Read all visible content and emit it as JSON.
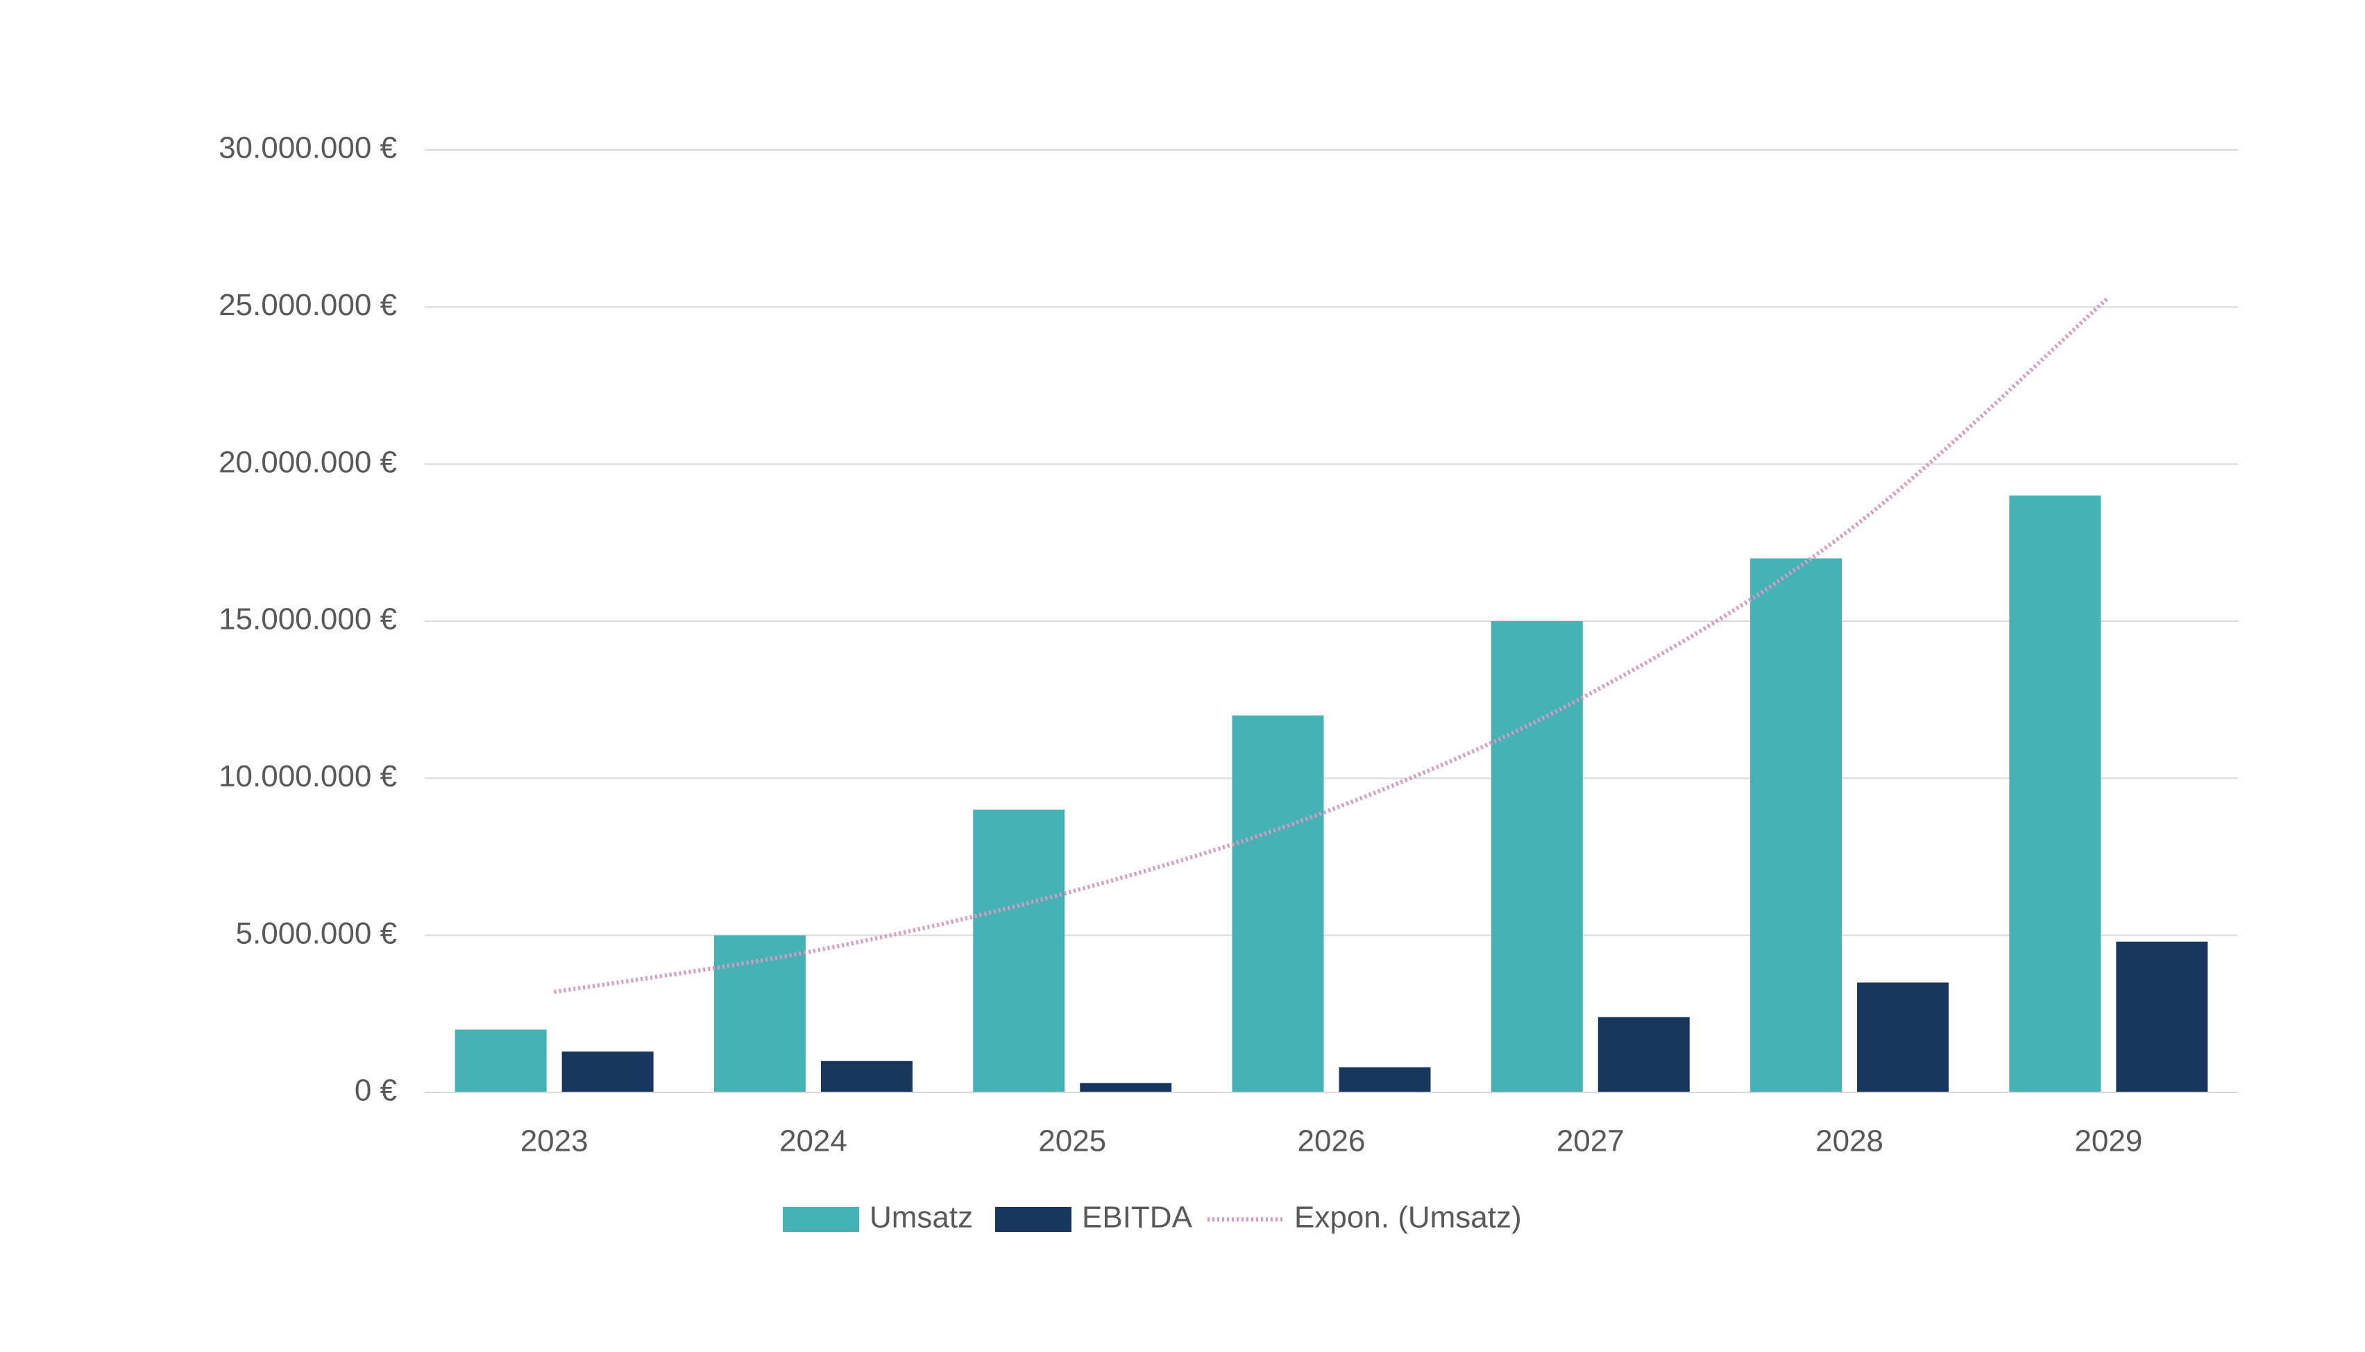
{
  "chart_data": {
    "type": "bar",
    "categories": [
      "2023",
      "2024",
      "2025",
      "2026",
      "2027",
      "2028",
      "2029"
    ],
    "series": [
      {
        "name": "Umsatz",
        "color": "#45b2b5",
        "values": [
          2000000,
          5000000,
          9000000,
          12000000,
          15000000,
          17000000,
          19000000
        ]
      },
      {
        "name": "EBITDA",
        "color": "#17375e",
        "values": [
          1300000,
          1000000,
          300000,
          800000,
          2400000,
          3500000,
          4800000
        ]
      },
      {
        "name": "Expon. (Umsatz)",
        "color": "#d99ac0",
        "line": true,
        "values": [
          3200000,
          4500000,
          6400000,
          9000000,
          12700000,
          17900000,
          25300000
        ]
      }
    ],
    "ylim": [
      0,
      30000000
    ],
    "yticks": [
      {
        "value": 0,
        "label": "0 €"
      },
      {
        "value": 5000000,
        "label": "5.000.000 €"
      },
      {
        "value": 10000000,
        "label": "10.000.000 €"
      },
      {
        "value": 15000000,
        "label": "15.000.000 €"
      },
      {
        "value": 20000000,
        "label": "20.000.000 €"
      },
      {
        "value": 25000000,
        "label": "25.000.000 €"
      },
      {
        "value": 30000000,
        "label": "30.000.000 €"
      }
    ],
    "grid": true,
    "legend": "bottom"
  }
}
